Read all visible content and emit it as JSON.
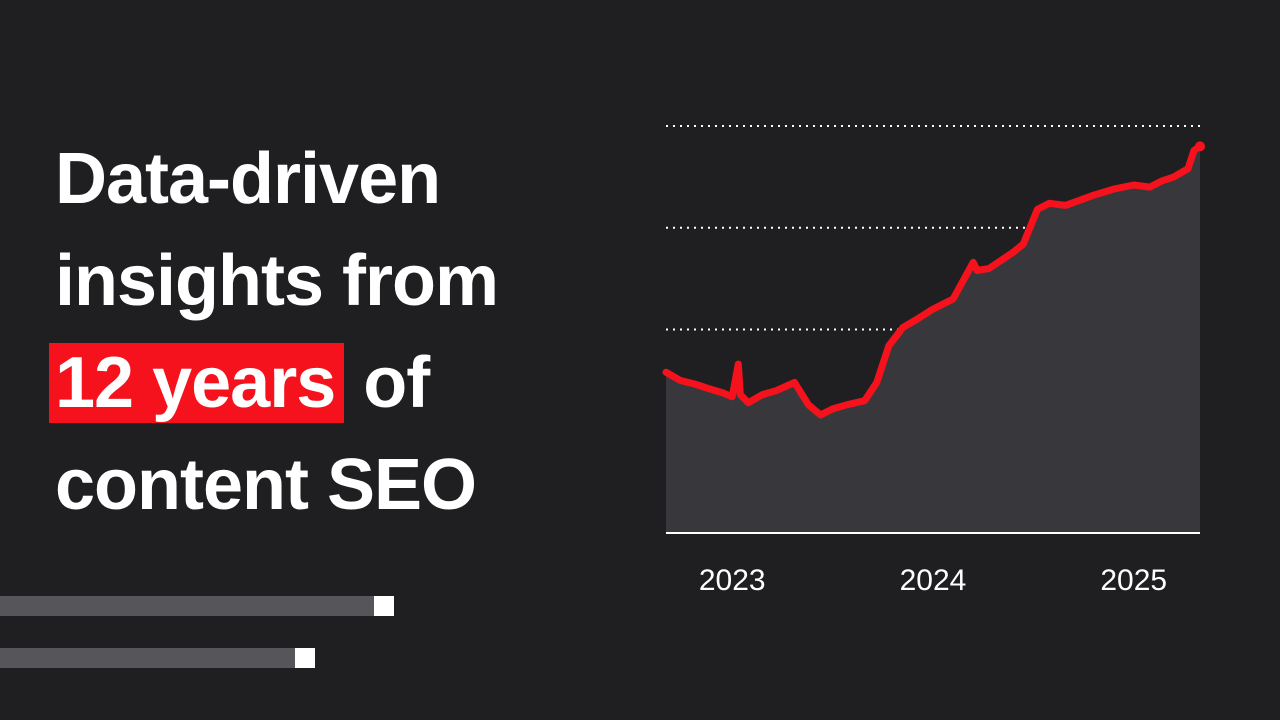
{
  "headline": {
    "line1": "Data-driven",
    "line2": "insights from",
    "highlight": "12 years",
    "line3_rest": " of",
    "line4": "content SEO"
  },
  "colors": {
    "background": "#1f1f22",
    "accent": "#f5121d",
    "area_fill": "#38383c",
    "gridline": "#ffffff",
    "deco_bar": "#55555a"
  },
  "decorations": [
    {
      "name": "progress-bar-top",
      "fill_fraction": 0.95
    },
    {
      "name": "progress-bar-bottom",
      "fill_fraction": 0.76
    }
  ],
  "chart_data": {
    "type": "area",
    "title": "",
    "xlabel": "",
    "ylabel": "",
    "x_ticks": [
      "2023",
      "2024",
      "2025"
    ],
    "x_tick_values": [
      2023.0,
      2024.0,
      2025.0
    ],
    "xlim": [
      2022.67,
      2025.33
    ],
    "ylim": [
      0,
      100
    ],
    "grid": {
      "horizontal_dotted": true,
      "y_values": [
        25,
        50,
        75,
        100
      ],
      "y_tick_labels_shown": false
    },
    "legend": "none",
    "series": [
      {
        "color": "#f5121d",
        "x": [
          2022.67,
          2022.74,
          2022.82,
          2022.88,
          2022.95,
          2023.0,
          2023.03,
          2023.04,
          2023.05,
          2023.08,
          2023.15,
          2023.22,
          2023.31,
          2023.38,
          2023.44,
          2023.5,
          2023.57,
          2023.66,
          2023.72,
          2023.78,
          2023.85,
          2023.92,
          2024.0,
          2024.1,
          2024.2,
          2024.22,
          2024.28,
          2024.4,
          2024.45,
          2024.52,
          2024.58,
          2024.66,
          2024.8,
          2024.9,
          2025.0,
          2025.08,
          2025.14,
          2025.2,
          2025.27,
          2025.3,
          2025.33
        ],
        "y": [
          39.5,
          37.5,
          36.5,
          35.5,
          34.5,
          33.5,
          41.5,
          34.0,
          33.5,
          32.0,
          34.0,
          35.0,
          37.0,
          31.5,
          29.0,
          30.5,
          31.5,
          32.5,
          37.0,
          46.0,
          50.5,
          52.5,
          55.0,
          57.5,
          66.5,
          64.5,
          65.0,
          69.0,
          71.0,
          79.5,
          81.0,
          80.5,
          83.0,
          84.5,
          85.5,
          85.0,
          86.5,
          87.5,
          89.5,
          94.0,
          95.0
        ]
      }
    ]
  }
}
